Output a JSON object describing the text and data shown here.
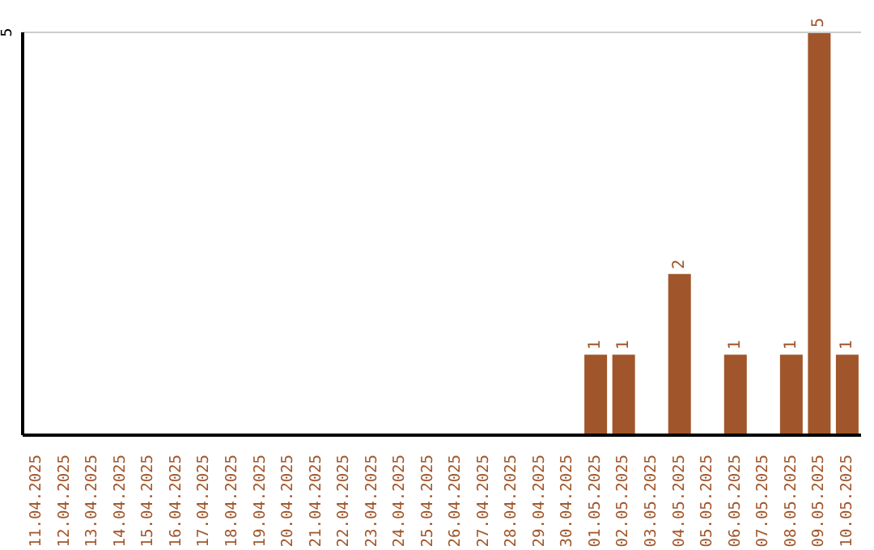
{
  "chart_data": {
    "type": "bar",
    "categories": [
      "11.04.2025",
      "12.04.2025",
      "13.04.2025",
      "14.04.2025",
      "15.04.2025",
      "16.04.2025",
      "17.04.2025",
      "18.04.2025",
      "19.04.2025",
      "20.04.2025",
      "21.04.2025",
      "22.04.2025",
      "23.04.2025",
      "24.04.2025",
      "25.04.2025",
      "26.04.2025",
      "27.04.2025",
      "28.04.2025",
      "29.04.2025",
      "30.04.2025",
      "01.05.2025",
      "02.05.2025",
      "03.05.2025",
      "04.05.2025",
      "05.05.2025",
      "06.05.2025",
      "07.05.2025",
      "08.05.2025",
      "09.05.2025",
      "10.05.2025"
    ],
    "values": [
      null,
      null,
      null,
      null,
      null,
      null,
      null,
      null,
      null,
      null,
      null,
      null,
      null,
      null,
      null,
      null,
      null,
      null,
      null,
      null,
      1,
      1,
      null,
      2,
      null,
      1,
      null,
      1,
      5,
      1
    ],
    "data_labels": true,
    "color": "#a0562a",
    "ylim": [
      0,
      5
    ],
    "yticks": [
      5
    ],
    "ref_lines": [
      {
        "axis": "y",
        "value": 5,
        "color": "#cccccc"
      }
    ]
  }
}
